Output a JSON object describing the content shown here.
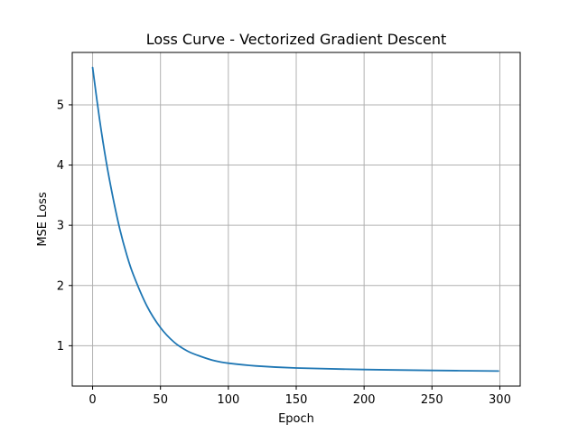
{
  "chart_data": {
    "type": "line",
    "title": "Loss Curve - Vectorized Gradient Descent",
    "xlabel": "Epoch",
    "ylabel": "MSE Loss",
    "xlim": [
      -15,
      315
    ],
    "ylim": [
      0.33,
      5.87
    ],
    "grid": true,
    "x_ticks": [
      {
        "value": 0,
        "label": "0"
      },
      {
        "value": 50,
        "label": "50"
      },
      {
        "value": 100,
        "label": "100"
      },
      {
        "value": 150,
        "label": "150"
      },
      {
        "value": 200,
        "label": "200"
      },
      {
        "value": 250,
        "label": "250"
      },
      {
        "value": 300,
        "label": "300"
      }
    ],
    "y_ticks": [
      {
        "value": 1,
        "label": "1"
      },
      {
        "value": 2,
        "label": "2"
      },
      {
        "value": 3,
        "label": "3"
      },
      {
        "value": 4,
        "label": "4"
      },
      {
        "value": 5,
        "label": "5"
      }
    ],
    "series": [
      {
        "color": "#1f77b4",
        "x": [
          0,
          5,
          10,
          15,
          20,
          25,
          30,
          40,
          50,
          60,
          70,
          80,
          90,
          100,
          120,
          150,
          200,
          250,
          299
        ],
        "y": [
          5.62,
          4.78,
          4.06,
          3.46,
          2.94,
          2.52,
          2.18,
          1.66,
          1.3,
          1.06,
          0.91,
          0.82,
          0.75,
          0.71,
          0.665,
          0.63,
          0.605,
          0.59,
          0.58
        ]
      }
    ]
  }
}
